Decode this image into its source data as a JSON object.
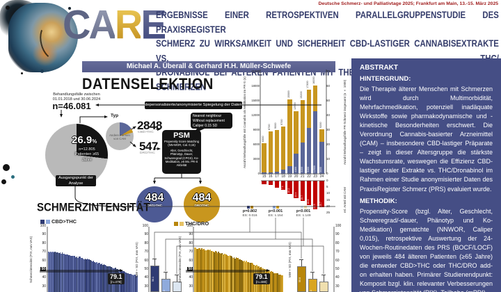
{
  "conference": "Deutsche Schmerz- und Palliativtage 2025; Frankfurt am Main, 13.-15. März 2025",
  "logo": {
    "c": "C",
    "a": "A",
    "r": "R",
    "e": "E"
  },
  "title": {
    "line1": "ERGEBNISSE EINER RETROSPEKTIVEN PARALLELGRUPPENSTUDIE DES PRAXISREGISTER",
    "line2": "SCHMERZ ZU WIRKSAMKEIT UND SICHERHEIT CBD-LASTIGER CANNABISEXTRAKTE VS. THC/",
    "line3": "DRONABINOL BEI ÄLTEREN PATIENTEN MIT THERAPIESCHWIERIGEN±CHRONISCHEN SCHMERZEN"
  },
  "authors": "Michael A. Überall & Gerhard H.H. Müller-Schwefe",
  "abstract": {
    "title": "ABSTRAKT",
    "background_label": "HINTERGRUND:",
    "background_text": "Die Therapie älterer Menschen mit Schmerzen wird durch Multimorbidität, Mehrfachmedikation, potenziell inadäquate Wirkstoffe sowie pharmakodynamische und -kinetische Besonderheiten erschwert. Die Verordnung Cannabis-basierter Arzneimittel (CAM) – insbesondere CBD-lastiger Präparate – zeigt in dieser Altersgruppe die stärkste Wachstumsrate, weswegen die Effizienz CBD-lastiger oraler Extrakte vs. THC/Dronabinol im Rahmen einer Studie anonymisierter Daten des PraxisRegister Schmerz (PRS) evaluiert wurde.",
    "methods_label": "METHODIK:",
    "methods_text": "Propensity-Score (bzgl. Alter, Geschlecht, Schweregrad/-dauer, Phänotyp und Ko-Medikation) gematchte (NNWOR, Caliper 0,015), retrospektive Auswertung der 24-Wochen-Routinedaten des PRS (BOCF/LOCF) von jeweils 484 älteren Patienten (≥65 Jahre) die entweder CBD>THC oder THC/DRO add-on erhalten haben. Primärer Studienendpunkt: Komposit bzgl. klin. relevanter Verbesserungen von Schmerzintensität (PIX), Teilhabe (mPDI)"
  },
  "selection": {
    "heading": "DATENSELEKTION",
    "period1": "Behandlungsfälle zwischen",
    "period2": "01.01.2018 und 30.06.2024",
    "n_total": "n=46.081",
    "mirror_label": "depersonalisierte/anonymisierte Spiegelung der Daten",
    "typ": "Typ",
    "big_pie": {
      "pct": "26.9",
      "pct_sign": "%",
      "sub1": "n=12.805",
      "sub2": "Patienten ≥65",
      "sub3": "Jahre"
    },
    "start1": "Ausgangspunkt der",
    "start2": "Analyse",
    "small_pie_label": "Andere Formen von CAM",
    "n_cbd": "2848",
    "n_cbd_label": "CBD>THC",
    "n_dro": "547",
    "n_dro_label": "DRO/THC",
    "psm": {
      "title": "PSM",
      "sub1": "Propensity Score Matching",
      "sub2": "(NN-WOR, Cal. 0,15)",
      "criteria": "Alter, Geschlecht, Phänotyp, Dauer, Schweregrad (CPGS), Ko-Medikation, ≥6 Mo. PR-S Aktivität"
    },
    "bubble": "Nearest neighbour Without replacement Caliper 0.15 SD",
    "group_cbd": {
      "n": "484",
      "label": "CBD>THC"
    },
    "group_dro": {
      "n": "484",
      "label": "DRO/THC"
    }
  },
  "pain": {
    "heading": "SCHMERZINTENSITÄT",
    "legend_cbd": "CBD>THC",
    "legend_thc": "THC/DRO",
    "ylabel_means": "MW + SD (PIX, mm VAS)",
    "annotation_cbd": {
      "value": "79.1",
      "n": "[n=479]"
    },
    "annotation_thc": {
      "value": "79.1",
      "n": "[n=480]"
    },
    "comparisons": [
      {
        "p": "p=0.802",
        "es": "ES: 0.016",
        "sq": [
          "#2f3b73",
          "#b8860b"
        ]
      },
      {
        "p": "p<0.001",
        "es": "ES: 1.154",
        "sq": [
          "#8faadc",
          "#d9a521"
        ]
      },
      {
        "p": "p<0.001",
        "es": "ES: 1.149",
        "sq": [
          "#dce6f1",
          "#f0dfae"
        ]
      }
    ]
  },
  "colors": {
    "accent_red": "#9f1a1a",
    "panel_blue": "#454e85",
    "authors_bar": "#5b6190",
    "cbd_dark": "#2f3b73",
    "cbd_mid": "#4d5a94",
    "cbd_light": "#8faadc",
    "cbd_pale": "#dce6f1",
    "thc_dark": "#b8860b",
    "thc_mid": "#c8961e",
    "thc_light": "#e6c265",
    "thc_pale": "#f0dfae",
    "pie_gray": "#b9b9b9",
    "black": "#141414",
    "red_bar": "#c00000"
  },
  "chart_data": [
    {
      "id": "cam_growth",
      "type": "bar",
      "stacked": true,
      "categories": [
        "15",
        "16",
        "17",
        "18",
        "19",
        "20",
        "21",
        "22",
        "23",
        "24"
      ],
      "series": [
        {
          "name": "andere Formen von CAM",
          "color": "#c8961e",
          "values": [
            6050,
            8400,
            8500,
            8900,
            13700,
            8800,
            8800,
            7900,
            5300,
            2600
          ]
        },
        {
          "name": "CBD>THC / DRO/THC",
          "color": "#5a6698",
          "values": [
            250,
            300,
            500,
            800,
            1600,
            4100,
            6400,
            9400,
            12900,
            6600
          ]
        }
      ],
      "totals": [
        6300,
        8700,
        9000,
        9700,
        15300,
        12900,
        15200,
        17300,
        18200,
        9200
      ],
      "ylabel_left": "Anzahl Behandlungsfälle mit Cannabis als Medikation im PR-S (n)",
      "ylabel_right": "Anzahl Behandlungsfälle PR-Schmerz insgesamt (n × 1000)",
      "ylim_left": [
        0,
        21000
      ],
      "yticks_left": [
        0,
        3000,
        6000,
        9000,
        12000,
        15000,
        18000,
        21000
      ],
      "ylim_right": [
        0,
        70
      ],
      "yticks_right": [
        0,
        10,
        20,
        30,
        40,
        50,
        60,
        70
      ],
      "grid": false
    },
    {
      "id": "cam_share",
      "type": "bar",
      "direction": "down",
      "categories": [
        "15",
        "16",
        "17",
        "18",
        "19",
        "20",
        "21",
        "22",
        "23",
        "24"
      ],
      "values": [
        2.6,
        3.4,
        5.3,
        7.1,
        10.2,
        13.4,
        15.7,
        18.8,
        22.5,
        20.7
      ],
      "color": "#c00000",
      "ylabel": "rel. Anteil mit CAM",
      "ylim": [
        0,
        25
      ],
      "yticks": [
        0,
        5,
        10,
        15,
        20,
        25
      ]
    },
    {
      "id": "pix_waterfall_cbd",
      "type": "area",
      "group": "CBD>THC",
      "ylabel": "Schmerzintensität (PIX, mm VAS)",
      "ylim": [
        30,
        100
      ],
      "yticks": [
        100,
        90,
        80,
        70,
        60,
        50,
        40,
        30
      ],
      "threshold": 50,
      "start": 73,
      "end": 44,
      "n_bars": 86,
      "annotation": "79.1 [n=479]"
    },
    {
      "id": "pix_waterfall_thc",
      "type": "area",
      "group": "THC/DRO",
      "ylabel": "Schmerzintensität (PIX, mm VAS)",
      "ylim": [
        30,
        100
      ],
      "yticks": [
        100,
        90,
        80,
        70,
        60,
        50,
        40,
        30
      ],
      "threshold": 50,
      "start": 77,
      "end": 44,
      "n_bars": 86,
      "annotation": "79.1 [n=480]"
    },
    {
      "id": "pix_means_cbd",
      "type": "bar",
      "group": "CBD>THC",
      "values": [
        56.1,
        41.4,
        38.2
      ],
      "colors": [
        "#2f3b73",
        "#8faadc",
        "#dce6f1"
      ],
      "ylim": [
        30,
        100
      ]
    },
    {
      "id": "pix_means_thc",
      "type": "bar",
      "group": "THC/DRO",
      "values": [
        55.8,
        41.1,
        38.3
      ],
      "colors": [
        "#b8860b",
        "#d9a521",
        "#f0dfae"
      ],
      "ylim": [
        30,
        100
      ],
      "yticks_right": [
        100,
        90,
        80,
        70,
        60,
        50,
        40,
        30
      ],
      "ylabel": "MW + SD (PIX, mm VAS)"
    }
  ]
}
